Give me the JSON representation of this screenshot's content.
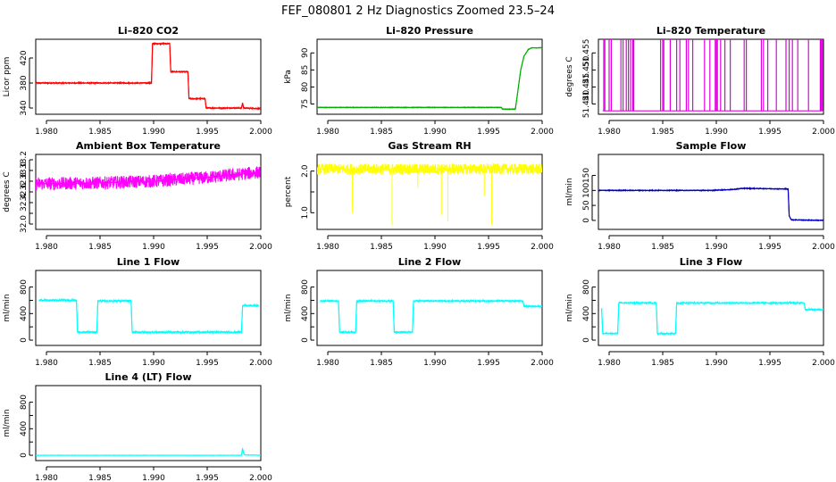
{
  "page": {
    "title": "FEF_080801 2 Hz Diagnostics Zoomed 23.5–24"
  },
  "chart_data": [
    {
      "id": "co2",
      "type": "line",
      "title": "Li–820 CO2",
      "xlabel": "",
      "ylabel": "Licor ppm",
      "color": "#ff0000",
      "xlim": [
        1.979,
        2.0
      ],
      "ylim": [
        330,
        450
      ],
      "xticks": [
        1.98,
        1.985,
        1.99,
        1.995,
        2.0
      ],
      "xtick_labels": [
        "1.980",
        "1.985",
        "1.990",
        "1.995",
        "2.000"
      ],
      "yticks": [
        340,
        380,
        420
      ],
      "ytick_labels": [
        "340",
        "380",
        "420"
      ],
      "noise": 1.0,
      "series": [
        {
          "x": [
            1.979,
            1.9898,
            1.9899,
            1.9915,
            1.9916,
            1.9932,
            1.9933,
            1.9948,
            1.9949,
            1.9982,
            1.9983,
            1.9984,
            2.0
          ],
          "y": [
            380,
            380,
            443,
            443,
            398,
            398,
            355,
            355,
            340,
            340,
            348,
            340,
            339
          ]
        }
      ]
    },
    {
      "id": "pressure",
      "type": "line",
      "title": "Li–820 Pressure",
      "xlabel": "",
      "ylabel": "kPa",
      "color": "#00b000",
      "xlim": [
        1.979,
        2.0
      ],
      "ylim": [
        72,
        94
      ],
      "xticks": [
        1.98,
        1.985,
        1.99,
        1.995,
        2.0
      ],
      "xtick_labels": [
        "1.980",
        "1.985",
        "1.990",
        "1.995",
        "2.000"
      ],
      "yticks": [
        75,
        80,
        85,
        90
      ],
      "ytick_labels": [
        "75",
        "80",
        "85",
        "90"
      ],
      "noise": 0.1,
      "series": [
        {
          "x": [
            1.979,
            1.9962,
            1.9963,
            1.9975,
            1.9977,
            1.998,
            1.9983,
            1.9987,
            1.999,
            2.0
          ],
          "y": [
            74,
            74,
            73.5,
            73.5,
            78,
            85,
            89,
            91,
            91.5,
            91.5
          ]
        }
      ]
    },
    {
      "id": "temperature",
      "type": "line",
      "title": "Li–820 Temperature",
      "xlabel": "",
      "ylabel": "degrees C",
      "color": "#e000e0",
      "xlim": [
        1.979,
        2.0
      ],
      "ylim": [
        51.437,
        51.459
      ],
      "xticks": [
        1.98,
        1.985,
        1.99,
        1.995,
        2.0
      ],
      "xtick_labels": [
        "1.980",
        "1.985",
        "1.990",
        "1.995",
        "2.000"
      ],
      "yticks": [
        51.44,
        51.445,
        51.45,
        51.455
      ],
      "ytick_labels": [
        "51.440",
        "51.445",
        "51.450",
        "51.455"
      ],
      "base": 51.438,
      "spike": 51.459,
      "spikes": [
        1.9795,
        1.9796,
        1.98,
        1.9802,
        1.9811,
        1.9813,
        1.9816,
        1.9818,
        1.982,
        1.9822,
        1.9823,
        1.9848,
        1.985,
        1.9851,
        1.9857,
        1.9863,
        1.9866,
        1.9872,
        1.9874,
        1.9878,
        1.9889,
        1.9894,
        1.9899,
        1.99,
        1.9901,
        1.9904,
        1.9908,
        1.9913,
        1.9926,
        1.9928,
        1.9942,
        1.9944,
        1.9948,
        1.9956,
        1.9965,
        1.9968,
        1.9971,
        1.9976,
        1.9986,
        1.9997,
        1.9998,
        1.9999
      ]
    },
    {
      "id": "ambient",
      "type": "line",
      "title": "Ambient Box Temperature",
      "xlabel": "",
      "ylabel": "degrees C",
      "color": "#ff00ff",
      "xlim": [
        1.979,
        2.0
      ],
      "ylim": [
        31.9,
        33.3
      ],
      "xticks": [
        1.98,
        1.985,
        1.99,
        1.995,
        2.0
      ],
      "xtick_labels": [
        "1.980",
        "1.985",
        "1.990",
        "1.995",
        "2.000"
      ],
      "yticks": [
        32.0,
        32.2,
        32.4,
        32.6,
        32.8,
        33.0,
        33.2
      ],
      "ytick_labels": [
        "32.0",
        "",
        "32.4",
        "32.6",
        "32.8",
        "33.0",
        "33.2"
      ],
      "noise": 0.12,
      "series": [
        {
          "x": [
            1.979,
            1.985,
            1.99,
            1.995,
            2.0
          ],
          "y": [
            32.75,
            32.77,
            32.8,
            32.87,
            32.97
          ]
        }
      ]
    },
    {
      "id": "rh",
      "type": "line",
      "title": "Gas Stream RH",
      "xlabel": "",
      "ylabel": "percent",
      "color": "#ffff00",
      "xlim": [
        1.979,
        2.0
      ],
      "ylim": [
        0.6,
        2.4
      ],
      "xticks": [
        1.98,
        1.985,
        1.99,
        1.995,
        2.0
      ],
      "xtick_labels": [
        "1.980",
        "1.985",
        "1.990",
        "1.995",
        "2.000"
      ],
      "yticks": [
        1.0,
        1.5,
        2.0
      ],
      "ytick_labels": [
        "1.0",
        "",
        "2.0"
      ],
      "noise": 0.13,
      "series": [
        {
          "x": [
            1.979,
            2.0
          ],
          "y": [
            2.05,
            2.05
          ]
        }
      ],
      "dips": [
        [
          1.9823,
          1.0
        ],
        [
          1.986,
          0.7
        ],
        [
          1.9884,
          1.6
        ],
        [
          1.9906,
          0.95
        ],
        [
          1.9912,
          0.8
        ],
        [
          1.9946,
          1.4
        ],
        [
          1.9953,
          0.7
        ]
      ]
    },
    {
      "id": "sample_flow",
      "type": "line",
      "title": "Sample Flow",
      "xlabel": "",
      "ylabel": "ml/min",
      "color": "#0000c0",
      "xlim": [
        1.979,
        2.0
      ],
      "ylim": [
        -30,
        220
      ],
      "xticks": [
        1.98,
        1.985,
        1.99,
        1.995,
        2.0
      ],
      "xtick_labels": [
        "1.980",
        "1.985",
        "1.990",
        "1.995",
        "2.000"
      ],
      "yticks": [
        0,
        50,
        100,
        150
      ],
      "ytick_labels": [
        "0",
        "50",
        "100",
        "150"
      ],
      "noise": 1.5,
      "series": [
        {
          "x": [
            1.979,
            1.9895,
            1.9915,
            1.9925,
            1.9945,
            1.996,
            1.9967,
            1.9968,
            1.997,
            2.0
          ],
          "y": [
            100,
            100,
            103,
            107,
            106,
            105,
            105,
            15,
            2,
            0
          ]
        }
      ]
    },
    {
      "id": "line1",
      "type": "line",
      "title": "Line 1 Flow",
      "xlabel": "",
      "ylabel": "ml/min",
      "color": "#00ffff",
      "xlim": [
        1.979,
        2.0
      ],
      "ylim": [
        -80,
        1050
      ],
      "xticks": [
        1.98,
        1.985,
        1.99,
        1.995,
        2.0
      ],
      "xtick_labels": [
        "1.980",
        "1.985",
        "1.990",
        "1.995",
        "2.000"
      ],
      "yticks": [
        0,
        200,
        400,
        600,
        800
      ],
      "ytick_labels": [
        "0",
        "",
        "400",
        "",
        "800"
      ],
      "noise": 15,
      "series": [
        {
          "x": [
            1.9793,
            1.9794,
            1.9828,
            1.9829,
            1.9847,
            1.9848,
            1.9879,
            1.988,
            1.9982,
            1.9983,
            1.9998
          ],
          "y": [
            600,
            600,
            600,
            120,
            120,
            590,
            590,
            120,
            120,
            520,
            520
          ]
        }
      ]
    },
    {
      "id": "line2",
      "type": "line",
      "title": "Line 2 Flow",
      "xlabel": "",
      "ylabel": "ml/min",
      "color": "#00ffff",
      "xlim": [
        1.979,
        2.0
      ],
      "ylim": [
        -80,
        1050
      ],
      "xticks": [
        1.98,
        1.985,
        1.99,
        1.995,
        2.0
      ],
      "xtick_labels": [
        "1.980",
        "1.985",
        "1.990",
        "1.995",
        "2.000"
      ],
      "yticks": [
        0,
        200,
        400,
        600,
        800
      ],
      "ytick_labels": [
        "0",
        "",
        "400",
        "",
        "800"
      ],
      "noise": 12,
      "series": [
        {
          "x": [
            1.9793,
            1.981,
            1.9811,
            1.9826,
            1.9827,
            1.9861,
            1.9862,
            1.9879,
            1.988,
            1.9982,
            1.9983,
            2.0
          ],
          "y": [
            590,
            590,
            120,
            120,
            590,
            590,
            120,
            120,
            590,
            590,
            510,
            510
          ]
        }
      ]
    },
    {
      "id": "line3",
      "type": "line",
      "title": "Line 3 Flow",
      "xlabel": "",
      "ylabel": "ml/min",
      "color": "#00ffff",
      "xlim": [
        1.979,
        2.0
      ],
      "ylim": [
        -80,
        1050
      ],
      "xticks": [
        1.98,
        1.985,
        1.99,
        1.995,
        2.0
      ],
      "xtick_labels": [
        "1.980",
        "1.985",
        "1.990",
        "1.995",
        "2.000"
      ],
      "yticks": [
        0,
        200,
        400,
        600,
        800
      ],
      "ytick_labels": [
        "0",
        "",
        "400",
        "",
        "800"
      ],
      "noise": 12,
      "series": [
        {
          "x": [
            1.9793,
            1.9794,
            1.9808,
            1.9809,
            1.9844,
            1.9845,
            1.9862,
            1.9863,
            1.9982,
            1.9983,
            2.0
          ],
          "y": [
            480,
            100,
            100,
            560,
            560,
            100,
            100,
            560,
            560,
            460,
            460
          ]
        }
      ]
    },
    {
      "id": "line4",
      "type": "line",
      "title": "Line 4 (LT) Flow",
      "xlabel": "",
      "ylabel": "ml/min",
      "color": "#00ffff",
      "xlim": [
        1.979,
        2.0
      ],
      "ylim": [
        -80,
        1050
      ],
      "xticks": [
        1.98,
        1.985,
        1.99,
        1.995,
        2.0
      ],
      "xtick_labels": [
        "1.980",
        "1.985",
        "1.990",
        "1.995",
        "2.000"
      ],
      "yticks": [
        0,
        200,
        400,
        600,
        800
      ],
      "ytick_labels": [
        "0",
        "",
        "400",
        "",
        "800"
      ],
      "noise": 3,
      "series": [
        {
          "x": [
            1.979,
            1.9982,
            1.9983,
            1.9984,
            1.9985,
            2.0
          ],
          "y": [
            0,
            0,
            100,
            30,
            5,
            0
          ]
        }
      ]
    }
  ]
}
